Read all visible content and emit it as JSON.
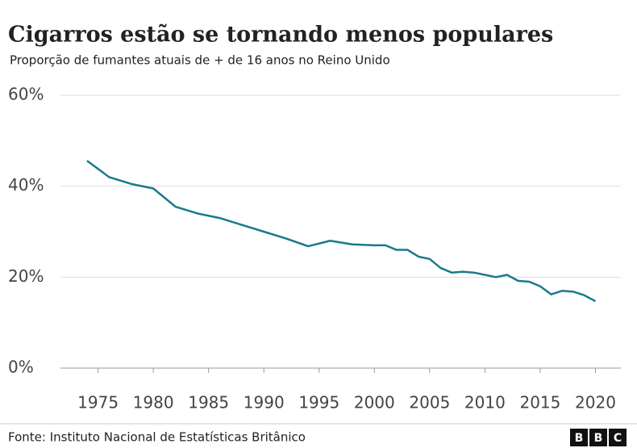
{
  "chart_data": {
    "type": "line",
    "title": "Cigarros estão se tornando menos populares",
    "subtitle": "Proporção de fumantes atuais de + de 16 anos no Reino Unido",
    "source": "Fonte: Instituto Nacional de Estatísticas Britânico",
    "logo": [
      "B",
      "B",
      "C"
    ],
    "x": [
      1974,
      1976,
      1978,
      1980,
      1982,
      1984,
      1986,
      1988,
      1990,
      1992,
      1994,
      1996,
      1998,
      2000,
      2001,
      2002,
      2003,
      2004,
      2005,
      2006,
      2007,
      2008,
      2009,
      2010,
      2011,
      2012,
      2013,
      2014,
      2015,
      2016,
      2017,
      2018,
      2019,
      2020
    ],
    "series": [
      {
        "name": "Fumantes",
        "color": "#1a7a8c",
        "values": [
          45.6,
          42,
          40.5,
          39.5,
          35.5,
          34,
          33,
          31.5,
          30,
          28.5,
          26.8,
          28,
          27.2,
          27,
          27,
          26,
          26,
          24.5,
          24,
          22,
          21,
          21.2,
          21,
          20.5,
          20,
          20.5,
          19.2,
          19,
          18,
          16.2,
          17,
          16.8,
          16,
          14.7
        ]
      }
    ],
    "xlim": [
      1971.6,
      2022.3
    ],
    "xticks": [
      1975,
      1980,
      1985,
      1990,
      1995,
      2000,
      2005,
      2010,
      2015,
      2020
    ],
    "ylim": [
      0,
      60
    ],
    "yticks": [
      {
        "value": 0,
        "label": "0%"
      },
      {
        "value": 20,
        "label": "20%"
      },
      {
        "value": 40,
        "label": "40%"
      },
      {
        "value": 60,
        "label": "60%"
      }
    ],
    "grid": true
  }
}
